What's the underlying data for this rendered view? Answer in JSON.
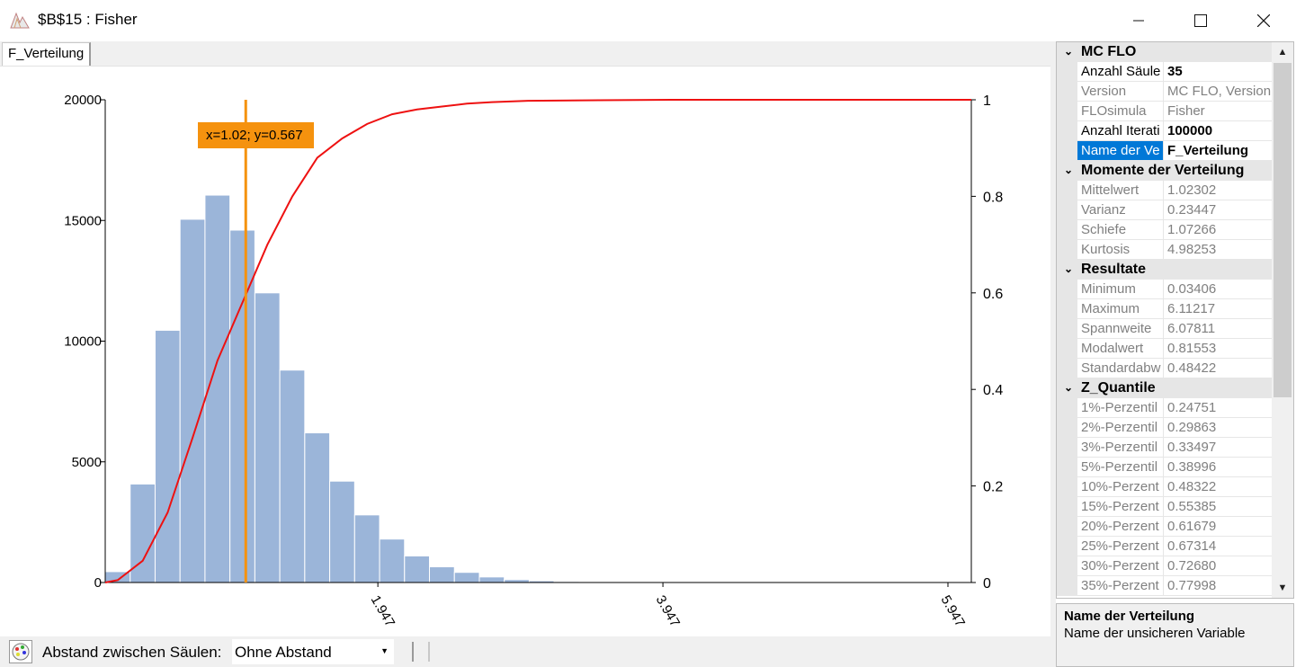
{
  "window": {
    "title": "$B$15 : Fisher",
    "minimize": "—",
    "maximize": "☐",
    "close": "✕"
  },
  "tab": {
    "label": "F_Verteilung"
  },
  "tooltip": {
    "text": "x=1.02; y=0.567"
  },
  "chart_data": {
    "type": "bar",
    "bars": [
      {
        "x": 0.034,
        "count": 450
      },
      {
        "x": 0.209,
        "count": 4080
      },
      {
        "x": 0.384,
        "count": 10450
      },
      {
        "x": 0.559,
        "count": 15050
      },
      {
        "x": 0.734,
        "count": 16050
      },
      {
        "x": 0.909,
        "count": 14600
      },
      {
        "x": 1.084,
        "count": 12000
      },
      {
        "x": 1.259,
        "count": 8800
      },
      {
        "x": 1.434,
        "count": 6200
      },
      {
        "x": 1.609,
        "count": 4200
      },
      {
        "x": 1.784,
        "count": 2800
      },
      {
        "x": 1.959,
        "count": 1800
      },
      {
        "x": 2.134,
        "count": 1100
      },
      {
        "x": 2.309,
        "count": 650
      },
      {
        "x": 2.484,
        "count": 420
      },
      {
        "x": 2.659,
        "count": 230
      },
      {
        "x": 2.834,
        "count": 120
      },
      {
        "x": 3.009,
        "count": 70
      },
      {
        "x": 3.184,
        "count": 40
      },
      {
        "x": 3.359,
        "count": 20
      },
      {
        "x": 3.534,
        "count": 10
      },
      {
        "x": 3.709,
        "count": 6
      },
      {
        "x": 3.884,
        "count": 4
      },
      {
        "x": 4.059,
        "count": 2
      },
      {
        "x": 4.234,
        "count": 1
      },
      {
        "x": 4.409,
        "count": 1
      },
      {
        "x": 4.584,
        "count": 0
      },
      {
        "x": 4.759,
        "count": 0
      },
      {
        "x": 4.934,
        "count": 0
      },
      {
        "x": 5.109,
        "count": 0
      },
      {
        "x": 5.284,
        "count": 0
      },
      {
        "x": 5.459,
        "count": 0
      },
      {
        "x": 5.634,
        "count": 0
      },
      {
        "x": 5.809,
        "count": 0
      },
      {
        "x": 5.984,
        "count": 0
      }
    ],
    "bin_width": 0.175,
    "cdf": [
      [
        0.034,
        0.0
      ],
      [
        0.122,
        0.005
      ],
      [
        0.297,
        0.045
      ],
      [
        0.472,
        0.145
      ],
      [
        0.647,
        0.3
      ],
      [
        0.822,
        0.46
      ],
      [
        0.997,
        0.58
      ],
      [
        1.172,
        0.7
      ],
      [
        1.347,
        0.8
      ],
      [
        1.522,
        0.88
      ],
      [
        1.697,
        0.92
      ],
      [
        1.872,
        0.95
      ],
      [
        2.047,
        0.97
      ],
      [
        2.222,
        0.98
      ],
      [
        2.397,
        0.986
      ],
      [
        2.572,
        0.992
      ],
      [
        2.747,
        0.995
      ],
      [
        3.0,
        0.998
      ],
      [
        3.5,
        0.999
      ],
      [
        4.0,
        1.0
      ],
      [
        6.111,
        1.0
      ]
    ],
    "cursor_x": 1.02,
    "xlim": [
      0.034,
      6.111
    ],
    "ylim_left": [
      0,
      20000
    ],
    "ylim_right": [
      0,
      1
    ],
    "yticks_left": [
      "0",
      "5000",
      "10000",
      "15000",
      "20000"
    ],
    "yticks_right": [
      "0",
      "0.2",
      "0.4",
      "0.6",
      "0.8",
      "1"
    ],
    "xticks": [
      {
        "value": 1.947,
        "label": "1.947"
      },
      {
        "value": 3.947,
        "label": "3.947"
      },
      {
        "value": 5.947,
        "label": "5.947"
      }
    ],
    "bar_color": "#9bb5d9",
    "cdf_color": "#ee1111",
    "cursor_color": "#f5920e"
  },
  "bottombar": {
    "gap_label": "Abstand zwischen Säulen:",
    "gap_value": "Ohne Abstand"
  },
  "propgrid": {
    "categories": [
      {
        "title": "MC FLO",
        "rows": [
          {
            "name": "Anzahl Säule",
            "value": "35",
            "editable": true
          },
          {
            "name": "Version",
            "value": "MC FLO, Version",
            "editable": false
          },
          {
            "name": "FLOsimula",
            "value": "Fisher",
            "editable": false
          },
          {
            "name": "Anzahl Iterati",
            "value": "100000",
            "editable": true
          },
          {
            "name": "Name der Ve",
            "value": "F_Verteilung",
            "editable": true,
            "selected": true
          }
        ]
      },
      {
        "title": "Momente der Verteilung",
        "rows": [
          {
            "name": "Mittelwert",
            "value": "1.02302"
          },
          {
            "name": "Varianz",
            "value": "0.23447"
          },
          {
            "name": "Schiefe",
            "value": "1.07266"
          },
          {
            "name": "Kurtosis",
            "value": "4.98253"
          }
        ]
      },
      {
        "title": "Resultate",
        "rows": [
          {
            "name": "Minimum",
            "value": "0.03406"
          },
          {
            "name": "Maximum",
            "value": "6.11217"
          },
          {
            "name": "Spannweite",
            "value": "6.07811"
          },
          {
            "name": "Modalwert",
            "value": "0.81553"
          },
          {
            "name": "Standardabw",
            "value": "0.48422"
          }
        ]
      },
      {
        "title": "Z_Quantile",
        "rows": [
          {
            "name": "1%-Perzentil",
            "value": "0.24751"
          },
          {
            "name": "2%-Perzentil",
            "value": "0.29863"
          },
          {
            "name": "3%-Perzentil",
            "value": "0.33497"
          },
          {
            "name": "5%-Perzentil",
            "value": "0.38996"
          },
          {
            "name": "10%-Perzent",
            "value": "0.48322"
          },
          {
            "name": "15%-Perzent",
            "value": "0.55385"
          },
          {
            "name": "20%-Perzent",
            "value": "0.61679"
          },
          {
            "name": "25%-Perzent",
            "value": "0.67314"
          },
          {
            "name": "30%-Perzent",
            "value": "0.72680"
          },
          {
            "name": "35%-Perzent",
            "value": "0.77998"
          }
        ]
      }
    ]
  },
  "help": {
    "title": "Name der Verteilung",
    "description": "Name der unsicheren Variable"
  }
}
